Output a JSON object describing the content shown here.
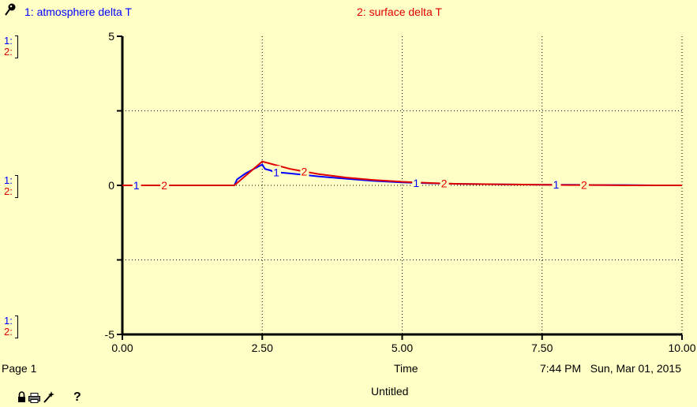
{
  "legend": [
    {
      "num": "1",
      "label": "1: atmosphere delta T",
      "color": "#0000ff"
    },
    {
      "num": "2",
      "label": "2: surface delta T",
      "color": "#e00000"
    }
  ],
  "scale_labels": {
    "top": [
      "1:",
      "2:"
    ],
    "mid": [
      "1:",
      "2:"
    ],
    "bottom": [
      "1:",
      "2:"
    ]
  },
  "footer": {
    "page": "Page 1",
    "time_label": "Time",
    "timestamp": "7:44 PM   Sun, Mar 01, 2015",
    "title": "Untitled",
    "help": "?"
  },
  "chart_data": {
    "type": "line",
    "xlabel": "Time",
    "xlim": [
      0,
      10
    ],
    "ylim": [
      -5,
      5
    ],
    "x_ticks": [
      "0.00",
      "2.50",
      "5.00",
      "7.50",
      "10.00"
    ],
    "y_ticks": [
      "5",
      "0",
      "-5"
    ],
    "grid": true,
    "series": [
      {
        "name": "1: atmosphere delta T",
        "color": "#0000ff",
        "marker_label": "1",
        "marker_x": [
          0.25,
          2.75,
          5.25,
          7.75
        ],
        "x": [
          0,
          2.0,
          2.05,
          2.2,
          2.5,
          2.55,
          2.65,
          2.7,
          3.0,
          3.5,
          4.0,
          4.5,
          5.0,
          5.5,
          6.0,
          6.5,
          7.0,
          7.5,
          8.0,
          8.5,
          9.0,
          9.5,
          10.0
        ],
        "y": [
          0,
          0,
          0.2,
          0.4,
          0.7,
          0.55,
          0.5,
          0.45,
          0.4,
          0.3,
          0.22,
          0.15,
          0.1,
          0.07,
          0.05,
          0.04,
          0.03,
          0.02,
          0.02,
          0.01,
          0.01,
          0,
          0
        ]
      },
      {
        "name": "2: surface delta T",
        "color": "#e00000",
        "marker_label": "2",
        "marker_x": [
          0.75,
          3.25,
          5.75,
          8.25
        ],
        "x": [
          0,
          2.0,
          2.5,
          3.0,
          3.5,
          4.0,
          4.5,
          5.0,
          5.5,
          6.0,
          6.5,
          7.0,
          7.5,
          8.0,
          8.5,
          9.0,
          9.5,
          10.0
        ],
        "y": [
          0,
          0,
          0.8,
          0.55,
          0.38,
          0.26,
          0.18,
          0.12,
          0.08,
          0.05,
          0.04,
          0.03,
          0.02,
          0.01,
          0.01,
          0,
          0,
          0
        ]
      }
    ]
  }
}
